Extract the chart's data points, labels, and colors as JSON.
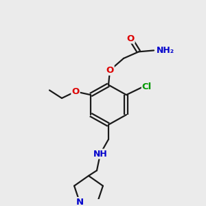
{
  "bg_color": "#ebebeb",
  "bond_color": "#1a1a1a",
  "bond_width": 1.6,
  "atom_colors": {
    "O": "#dd0000",
    "N": "#0000cc",
    "Cl": "#009900",
    "NH": "#0000cc",
    "NH2": "#0000cc",
    "H": "#5588aa",
    "C": "#1a1a1a"
  },
  "font_size_atom": 9.5,
  "fig_size": [
    3.0,
    3.0
  ],
  "dpi": 100
}
